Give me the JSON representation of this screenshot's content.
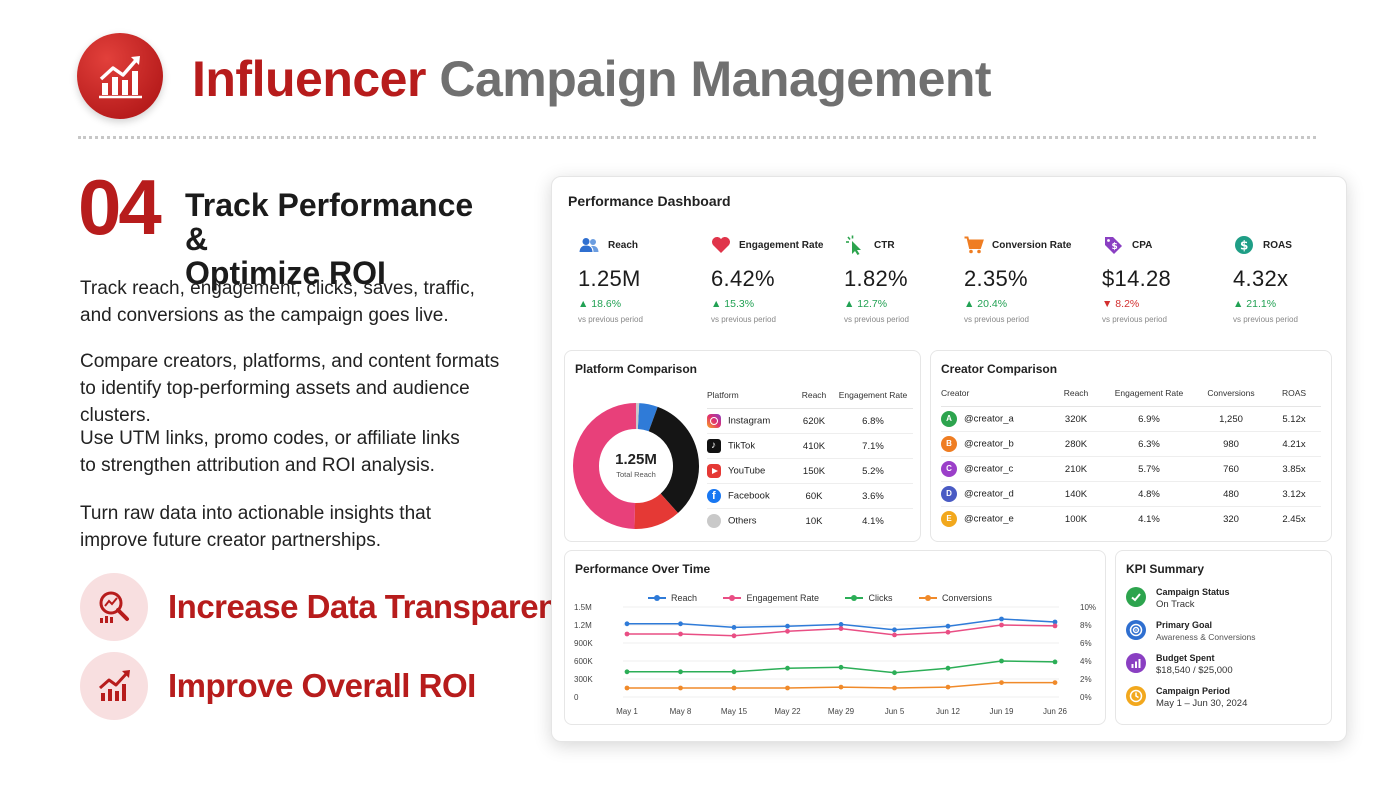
{
  "header": {
    "title_accent": "Influencer",
    "title_rest": "Campaign Management",
    "logo_icon": "growth-chart-icon"
  },
  "step": {
    "number": "04",
    "title_line1": "Track Performance &",
    "title_line2": "Optimize ROI"
  },
  "paragraphs": [
    {
      "line1": "Track reach, engagement, clicks, saves, traffic,",
      "line2": "and conversions as the campaign goes live."
    },
    {
      "line1": "Compare creators, platforms, and content formats",
      "line2": "to identify top-performing assets and audience clusters."
    },
    {
      "line1": "Use UTM links, promo codes, or affiliate links",
      "line2": "to strengthen attribution and ROI analysis."
    },
    {
      "line1": "Turn raw data into actionable insights that",
      "line2": "improve future creator partnerships."
    }
  ],
  "benefits": [
    {
      "label": "Increase Data Transparency",
      "icon": "magnifier-chart-icon"
    },
    {
      "label": "Improve Overall ROI",
      "icon": "rising-chart-icon"
    }
  ],
  "dashboard": {
    "title": "Performance Dashboard",
    "kpis": [
      {
        "label": "Reach",
        "value": "1.25M",
        "change": "▲ 18.6%",
        "direction": "up",
        "sub": "vs previous period",
        "icon": "users-icon",
        "bg": "#eef4fb",
        "color": "#2f6fd0"
      },
      {
        "label": "Engagement Rate",
        "value": "6.42%",
        "change": "▲ 15.3%",
        "direction": "up",
        "sub": "vs previous period",
        "icon": "heart-icon",
        "bg": "#fcefef",
        "color": "#e0344a"
      },
      {
        "label": "CTR",
        "value": "1.82%",
        "change": "▲ 12.7%",
        "direction": "up",
        "sub": "vs previous period",
        "icon": "cursor-click-icon",
        "bg": "#eef7ee",
        "color": "#2da44e"
      },
      {
        "label": "Conversion Rate",
        "value": "2.35%",
        "change": "▲ 20.4%",
        "direction": "up",
        "sub": "vs previous period",
        "icon": "cart-icon",
        "bg": "#fdf3ea",
        "color": "#ef7d22"
      },
      {
        "label": "CPA",
        "value": "$14.28",
        "change": "▼ 8.2%",
        "direction": "down",
        "sub": "vs previous period",
        "icon": "price-tag-icon",
        "bg": "#f4effa",
        "color": "#8a3fc2"
      },
      {
        "label": "ROAS",
        "value": "4.32x",
        "change": "▲ 21.1%",
        "direction": "up",
        "sub": "vs previous period",
        "icon": "dollar-coin-icon",
        "bg": "#ecf6f4",
        "color": "#1f9e86"
      }
    ],
    "platform": {
      "title": "Platform Comparison",
      "donut_value": "1.25M",
      "donut_label": "Total Reach",
      "headers": [
        "Platform",
        "Reach",
        "Engagement Rate"
      ],
      "rows": [
        {
          "name": "Instagram",
          "reach": "620K",
          "rate": "6.8%",
          "icon": "instagram-icon",
          "color": "#e1306c"
        },
        {
          "name": "TikTok",
          "reach": "410K",
          "rate": "7.1%",
          "icon": "tiktok-icon",
          "color": "#111111"
        },
        {
          "name": "YouTube",
          "reach": "150K",
          "rate": "5.2%",
          "icon": "youtube-icon",
          "color": "#e53935"
        },
        {
          "name": "Facebook",
          "reach": "60K",
          "rate": "3.6%",
          "icon": "facebook-icon",
          "color": "#1877f2"
        },
        {
          "name": "Others",
          "reach": "10K",
          "rate": "4.1%",
          "icon": "others-icon",
          "color": "#c9c9c9"
        }
      ]
    },
    "creators": {
      "title": "Creator Comparison",
      "headers": [
        "Creator",
        "Reach",
        "Engagement Rate",
        "Conversions",
        "ROAS"
      ],
      "rows": [
        {
          "initial": "A",
          "name": "@creator_a",
          "reach": "320K",
          "rate": "6.9%",
          "conv": "1,250",
          "roas": "5.12x",
          "color": "#2da44e"
        },
        {
          "initial": "B",
          "name": "@creator_b",
          "reach": "280K",
          "rate": "6.3%",
          "conv": "980",
          "roas": "4.21x",
          "color": "#ef7d22"
        },
        {
          "initial": "C",
          "name": "@creator_c",
          "reach": "210K",
          "rate": "5.7%",
          "conv": "760",
          "roas": "3.85x",
          "color": "#9b3fc9"
        },
        {
          "initial": "D",
          "name": "@creator_d",
          "reach": "140K",
          "rate": "4.8%",
          "conv": "480",
          "roas": "3.12x",
          "color": "#4a5bc4"
        },
        {
          "initial": "E",
          "name": "@creator_e",
          "reach": "100K",
          "rate": "4.1%",
          "conv": "320",
          "roas": "2.45x",
          "color": "#f2a81d"
        }
      ]
    },
    "time": {
      "title": "Performance Over Time",
      "legend": [
        {
          "name": "Reach",
          "color": "#2f7bd8"
        },
        {
          "name": "Engagement Rate",
          "color": "#e94e84"
        },
        {
          "name": "Clicks",
          "color": "#2cae57"
        },
        {
          "name": "Conversions",
          "color": "#f08a2a"
        }
      ],
      "left_ticks": [
        "1.5M",
        "1.2M",
        "900K",
        "600K",
        "300K",
        "0"
      ],
      "right_ticks": [
        "10%",
        "8%",
        "6%",
        "4%",
        "2%",
        "0%"
      ],
      "x_labels": [
        "May 1",
        "May 8",
        "May 15",
        "May 22",
        "May 29",
        "Jun 5",
        "Jun 12",
        "Jun 19",
        "Jun 26"
      ]
    },
    "kpi_summary": {
      "title": "KPI Summary",
      "items": [
        {
          "label": "Campaign Status",
          "value": "On Track",
          "icon": "check-icon",
          "color": "#2da44e"
        },
        {
          "label": "Primary Goal",
          "value": "Awareness & Conversions",
          "icon": "target-icon",
          "color": "#2f6fd0"
        },
        {
          "label": "Budget Spent",
          "value": "$18,540 / $25,000",
          "icon": "wallet-chart-icon",
          "color": "#8a3fc2"
        },
        {
          "label": "Campaign Period",
          "value": "May 1 – Jun 30, 2024",
          "icon": "clock-icon",
          "color": "#f2a81d"
        }
      ]
    }
  },
  "chart_data": [
    {
      "type": "pie",
      "title": "Platform Comparison",
      "categories": [
        "Instagram",
        "TikTok",
        "YouTube",
        "Facebook",
        "Others"
      ],
      "values": [
        620,
        410,
        150,
        60,
        10
      ],
      "unit": "K"
    },
    {
      "type": "line",
      "title": "Performance Over Time",
      "x": [
        "May 1",
        "May 8",
        "May 15",
        "May 22",
        "May 29",
        "Jun 5",
        "Jun 12",
        "Jun 19",
        "Jun 26"
      ],
      "y_left_range": [
        0,
        1500000
      ],
      "y_right_range": [
        0,
        10
      ],
      "series": [
        {
          "name": "Reach",
          "axis": "left",
          "values": [
            1220000,
            1220000,
            1160000,
            1180000,
            1210000,
            1120000,
            1180000,
            1300000,
            1250000
          ]
        },
        {
          "name": "Engagement Rate",
          "axis": "right",
          "values": [
            7.0,
            7.0,
            6.8,
            7.3,
            7.6,
            6.9,
            7.2,
            8.0,
            7.9
          ]
        },
        {
          "name": "Clicks",
          "axis": "right",
          "values": [
            2.8,
            2.8,
            2.8,
            3.2,
            3.3,
            2.7,
            3.2,
            4.0,
            3.9
          ]
        },
        {
          "name": "Conversions",
          "axis": "right",
          "values": [
            1.0,
            1.0,
            1.0,
            1.0,
            1.1,
            1.0,
            1.1,
            1.6,
            1.6
          ]
        }
      ]
    }
  ]
}
